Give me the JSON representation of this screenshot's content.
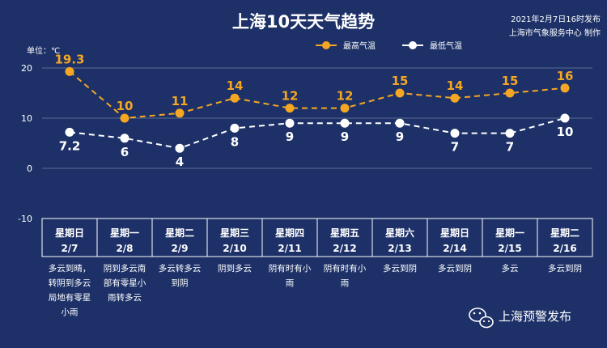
{
  "header": {
    "title": "上海10天天气趋势",
    "publish_time": "2021年2月7日16时发布",
    "producer": "上海市气象服务中心 制作"
  },
  "brand": {
    "name": "上海预警发布",
    "icon": "wechat-icon"
  },
  "colors": {
    "background": "#1d3168",
    "high": "#f5a623",
    "low": "#ffffff"
  },
  "chart_data": {
    "type": "line",
    "unit_label": "单位：℃",
    "ylim": [
      -10,
      20
    ],
    "yticks": [
      -10,
      0,
      10,
      20
    ],
    "grid": true,
    "legend_position": "top-right",
    "categories": [
      {
        "day": "星期日",
        "date": "2/7"
      },
      {
        "day": "星期一",
        "date": "2/8"
      },
      {
        "day": "星期二",
        "date": "2/9"
      },
      {
        "day": "星期三",
        "date": "2/10"
      },
      {
        "day": "星期四",
        "date": "2/11"
      },
      {
        "day": "星期五",
        "date": "2/12"
      },
      {
        "day": "星期六",
        "date": "2/13"
      },
      {
        "day": "星期日",
        "date": "2/14"
      },
      {
        "day": "星期一",
        "date": "2/15"
      },
      {
        "day": "星期二",
        "date": "2/16"
      }
    ],
    "series": [
      {
        "name": "最高气温",
        "labels": [
          "19.3",
          "10",
          "11",
          "14",
          "12",
          "12",
          "15",
          "14",
          "15",
          "16"
        ],
        "values": [
          19.3,
          10,
          11,
          14,
          12,
          12,
          15,
          14,
          15,
          16
        ]
      },
      {
        "name": "最低气温",
        "labels": [
          "7.2",
          "6",
          "4",
          "8",
          "9",
          "9",
          "9",
          "7",
          "7",
          "10"
        ],
        "values": [
          7.2,
          6,
          4,
          8,
          9,
          9,
          9,
          7,
          7,
          10
        ]
      }
    ],
    "descriptions": [
      [
        "多云到晴，",
        "转阴到多云",
        "局地有零星",
        "小雨"
      ],
      [
        "阴到多云南",
        "部有零星小",
        "雨转多云"
      ],
      [
        "多云转多云",
        "到阴"
      ],
      [
        "阴到多云"
      ],
      [
        "阴有时有小",
        "雨"
      ],
      [
        "阴有时有小",
        "雨"
      ],
      [
        "多云到阴"
      ],
      [
        "多云到阴"
      ],
      [
        "多云"
      ],
      [
        "多云到阴"
      ]
    ]
  }
}
